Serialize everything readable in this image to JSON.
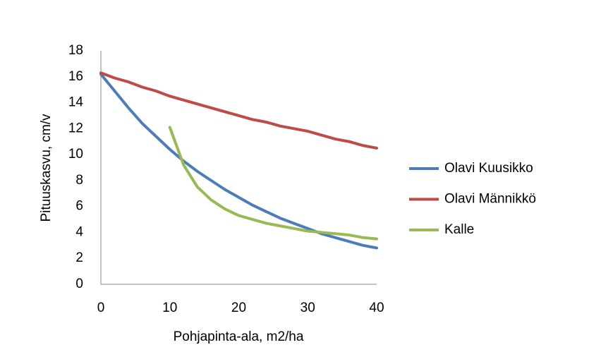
{
  "chart_data": {
    "type": "line",
    "x_label": "Pohjapinta-ala, m2/ha",
    "y_label": "Pituuskasvu, cm/v",
    "x": [
      0,
      2,
      4,
      6,
      8,
      10,
      12,
      14,
      16,
      18,
      20,
      22,
      24,
      26,
      28,
      30,
      32,
      34,
      36,
      38,
      40
    ],
    "series": [
      {
        "name": "Olavi Kuusikko",
        "color": "#4a7ebb",
        "values": [
          16.2,
          14.9,
          13.6,
          12.4,
          11.4,
          10.4,
          9.5,
          8.7,
          8.0,
          7.3,
          6.7,
          6.1,
          5.6,
          5.1,
          4.7,
          4.3,
          3.9,
          3.6,
          3.3,
          3.0,
          2.8
        ]
      },
      {
        "name": "Olavi Männikkö",
        "color": "#be4b48",
        "values": [
          16.3,
          15.9,
          15.6,
          15.2,
          14.9,
          14.5,
          14.2,
          13.9,
          13.6,
          13.3,
          13.0,
          12.7,
          12.5,
          12.2,
          12.0,
          11.8,
          11.5,
          11.2,
          11.0,
          10.7,
          10.5
        ]
      },
      {
        "name": "Kalle",
        "color": "#98b954",
        "values": [
          null,
          null,
          null,
          null,
          null,
          12.1,
          9.2,
          7.5,
          6.5,
          5.8,
          5.3,
          5.0,
          4.7,
          4.5,
          4.3,
          4.1,
          4.0,
          3.9,
          3.8,
          3.6,
          3.5
        ]
      }
    ],
    "xlim": [
      0,
      40
    ],
    "xticks": [
      0,
      10,
      20,
      30,
      40
    ],
    "ylim": [
      0,
      18
    ],
    "yticks": [
      0,
      2,
      4,
      6,
      8,
      10,
      12,
      14,
      16,
      18
    ],
    "grid": false,
    "legend": "right"
  }
}
